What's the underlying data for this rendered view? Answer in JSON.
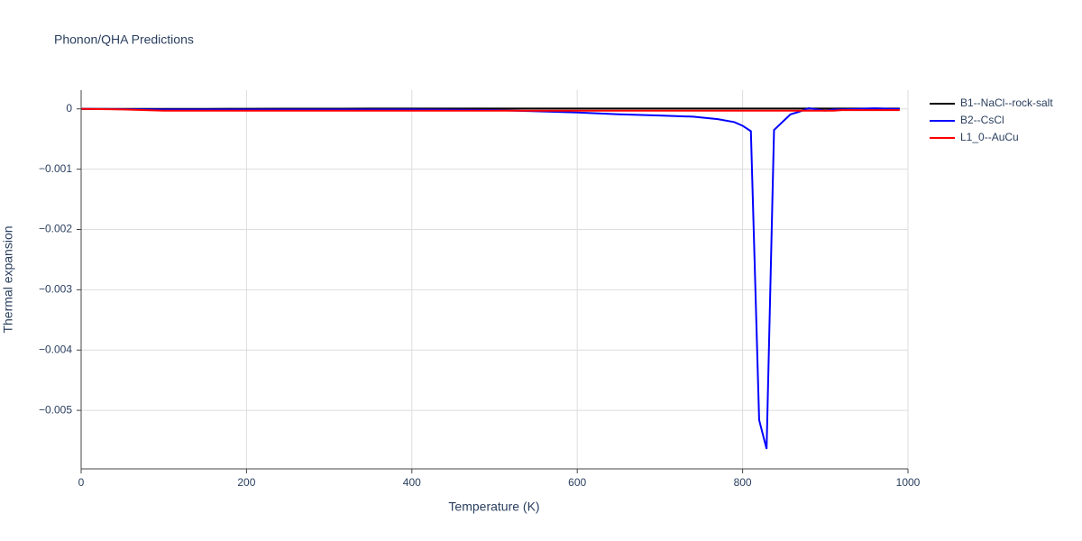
{
  "chart_data": {
    "type": "line",
    "title": "Phonon/QHA Predictions",
    "x_label": "Temperature (K)",
    "y_label": "Thermal expansion",
    "x": [
      0,
      50,
      100,
      150,
      200,
      250,
      300,
      350,
      400,
      450,
      500,
      550,
      600,
      650,
      700,
      740,
      770,
      790,
      800,
      810,
      820,
      829,
      838,
      848,
      858,
      868,
      880,
      890,
      900,
      910,
      920,
      940,
      960,
      980,
      990
    ],
    "series": [
      {
        "name": "B1--NaCl--rock-salt",
        "color": "#000000",
        "values": [
          0,
          0,
          0,
          0,
          2e-06,
          3e-06,
          4e-06,
          5e-06,
          6e-06,
          6e-06,
          6e-06,
          6e-06,
          6e-06,
          6e-06,
          6e-06,
          6e-06,
          6e-06,
          6e-06,
          6e-06,
          6e-06,
          6e-06,
          6e-06,
          6e-06,
          6e-06,
          6e-06,
          6e-06,
          6e-06,
          6e-06,
          6e-06,
          6e-06,
          6e-06,
          6e-06,
          6e-06,
          6e-06,
          6e-06
        ]
      },
      {
        "name": "B2--CsCl",
        "color": "#0000ff",
        "values": [
          0,
          -5e-06,
          -1e-05,
          -1e-05,
          -1e-05,
          -1e-05,
          -1e-05,
          -1e-05,
          -1e-05,
          -1.5e-05,
          -2e-05,
          -4e-05,
          -6e-05,
          -9e-05,
          -0.00011,
          -0.00013,
          -0.00017,
          -0.00022,
          -0.00028,
          -0.00037,
          -0.00516,
          -0.00564,
          -0.00035,
          -0.00022,
          -9e-05,
          -5e-05,
          1e-05,
          -1e-05,
          -3e-05,
          -1e-05,
          -1e-05,
          0,
          1e-05,
          0,
          0
        ]
      },
      {
        "name": "L1_0--AuCu",
        "color": "#ff0000",
        "values": [
          0,
          -1e-05,
          -3e-05,
          -3e-05,
          -3e-05,
          -3e-05,
          -3e-05,
          -3e-05,
          -3e-05,
          -3e-05,
          -3e-05,
          -3e-05,
          -3e-05,
          -3e-05,
          -3e-05,
          -3e-05,
          -3e-05,
          -3e-05,
          -3e-05,
          -3e-05,
          -3e-05,
          -3e-05,
          -3e-05,
          -3e-05,
          -3e-05,
          -3e-05,
          -3e-05,
          -3e-05,
          -3e-05,
          -3e-05,
          -2e-05,
          -2e-05,
          -2e-05,
          -2e-05,
          -2e-05
        ]
      }
    ],
    "xlim": [
      0,
      1000
    ],
    "xticks": [
      0,
      200,
      400,
      600,
      800,
      1000
    ],
    "ylim": [
      -0.00597,
      0.00031
    ],
    "yticks": [
      {
        "value": -0.005,
        "label": "−0.005"
      },
      {
        "value": -0.004,
        "label": "−0.004"
      },
      {
        "value": -0.003,
        "label": "−0.003"
      },
      {
        "value": -0.002,
        "label": "−0.002"
      },
      {
        "value": -0.001,
        "label": "−0.001"
      },
      0
    ],
    "grid": true,
    "legend": "right"
  }
}
